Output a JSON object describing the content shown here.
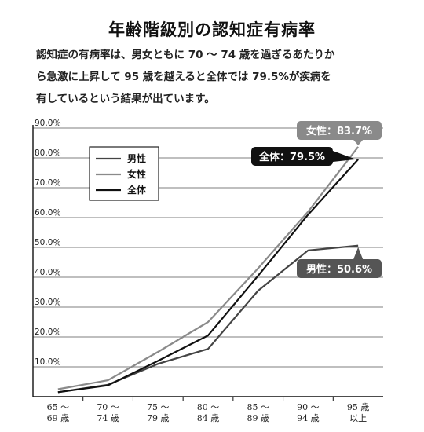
{
  "title": "年齢階級別の認知症有病率",
  "description": [
    "認知症の有病率は、男女ともに 70 〜 74 歳を過ぎるあたりか",
    "ら急激に上昇して 95 歳を越えると全体では 79.5%が疾病を",
    "有しているという結果が出ています。"
  ],
  "chart_data": {
    "type": "line",
    "categories": [
      [
        "65 〜",
        "69 歳"
      ],
      [
        "70 〜",
        "74 歳"
      ],
      [
        "75 〜",
        "79 歳"
      ],
      [
        "80 〜",
        "84 歳"
      ],
      [
        "85 〜",
        "89 歳"
      ],
      [
        "90 〜",
        "94 歳"
      ],
      [
        "95 歳",
        "以上"
      ]
    ],
    "yticks": [
      "10.0％",
      "20.0％",
      "30.0％",
      "40.0％",
      "50.0％",
      "60.0％",
      "70.0％",
      "80.0％",
      "90.0％"
    ],
    "ylim": [
      0,
      90
    ],
    "grid": true,
    "legend": "top-left",
    "series": [
      {
        "name": "男性",
        "color": "#444444",
        "values": [
          1.5,
          4,
          11,
          16,
          35.5,
          49,
          50.6
        ]
      },
      {
        "name": "女性",
        "color": "#8a8a8a",
        "values": [
          2.5,
          5.5,
          15,
          25,
          43,
          62,
          83.7
        ]
      },
      {
        "name": "全体",
        "color": "#111111",
        "values": [
          1.5,
          3.8,
          12,
          20.5,
          40.5,
          61,
          79.5
        ]
      }
    ],
    "annotations": [
      {
        "text": "女性：83.7%",
        "series": "女性",
        "fill": "#8a8a8a"
      },
      {
        "text": "全体：79.5%",
        "series": "全体",
        "fill": "#111111"
      },
      {
        "text": "男性：50.6%",
        "series": "男性",
        "fill": "#555555"
      }
    ]
  }
}
